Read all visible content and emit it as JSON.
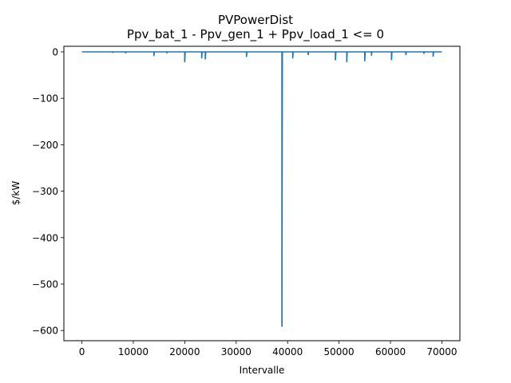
{
  "chart_data": {
    "type": "line",
    "title": "PVPowerDist",
    "subtitle": "Ppv_bat_1 - Ppv_gen_1 + Ppv_load_1 <= 0",
    "xlabel": "Intervalle",
    "ylabel": "$/kW",
    "xlim": [
      -3500,
      73500
    ],
    "ylim": [
      -622,
      12
    ],
    "xticks": [
      0,
      10000,
      20000,
      30000,
      40000,
      50000,
      60000,
      70000
    ],
    "xtick_labels": [
      "0",
      "10000",
      "20000",
      "30000",
      "40000",
      "50000",
      "60000",
      "70000"
    ],
    "yticks": [
      0,
      -100,
      -200,
      -300,
      -400,
      -500,
      -600
    ],
    "ytick_labels": [
      "0",
      "−100",
      "−200",
      "−300",
      "−400",
      "−500",
      "−600"
    ],
    "grid": false,
    "legend": "none",
    "series": [
      {
        "color": "#1f77b4",
        "baseline": 0,
        "x_range": [
          0,
          70000
        ],
        "spikes": [
          {
            "x": 6000,
            "y": -2
          },
          {
            "x": 8500,
            "y": -3
          },
          {
            "x": 14000,
            "y": -9
          },
          {
            "x": 16500,
            "y": -3
          },
          {
            "x": 20000,
            "y": -22
          },
          {
            "x": 23300,
            "y": -14
          },
          {
            "x": 24000,
            "y": -16
          },
          {
            "x": 32000,
            "y": -11
          },
          {
            "x": 38900,
            "y": -592
          },
          {
            "x": 41000,
            "y": -14
          },
          {
            "x": 44000,
            "y": -7
          },
          {
            "x": 49300,
            "y": -18
          },
          {
            "x": 51500,
            "y": -22
          },
          {
            "x": 55000,
            "y": -20
          },
          {
            "x": 56300,
            "y": -8
          },
          {
            "x": 60200,
            "y": -18
          },
          {
            "x": 63000,
            "y": -7
          },
          {
            "x": 66500,
            "y": -4
          },
          {
            "x": 68300,
            "y": -10
          }
        ]
      }
    ]
  }
}
